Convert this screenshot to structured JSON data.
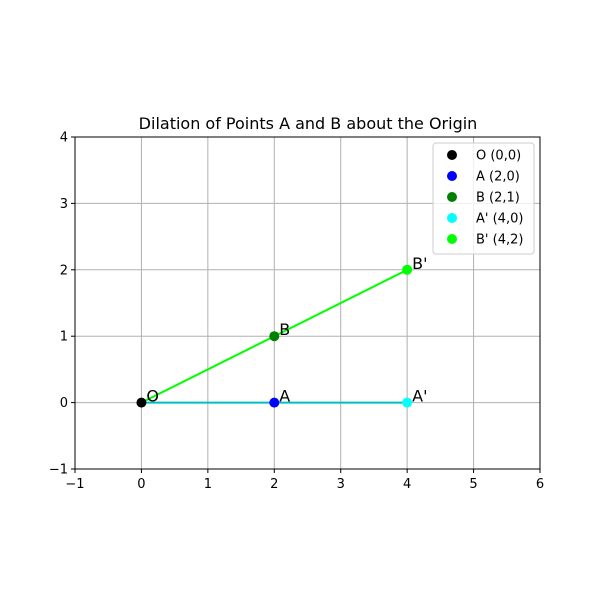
{
  "chart_data": {
    "type": "scatter",
    "title": "Dilation of Points A and B about the Origin",
    "xlabel": "",
    "ylabel": "",
    "xlim": [
      -1,
      6
    ],
    "ylim": [
      -1,
      4
    ],
    "xticks": [
      -1,
      0,
      1,
      2,
      3,
      4,
      5,
      6
    ],
    "yticks": [
      -1,
      0,
      1,
      2,
      3,
      4
    ],
    "xtick_labels": [
      "−1",
      "0",
      "1",
      "2",
      "3",
      "4",
      "5",
      "6"
    ],
    "ytick_labels": [
      "−1",
      "0",
      "1",
      "2",
      "3",
      "4"
    ],
    "grid": true,
    "legend_position": "top-right",
    "series": [
      {
        "name": "O (0,0)",
        "label": "O",
        "x": 0,
        "y": 0,
        "color": "#000000"
      },
      {
        "name": "A (2,0)",
        "label": "A",
        "x": 2,
        "y": 0,
        "color": "#0000ff"
      },
      {
        "name": "B (2,1)",
        "label": "B",
        "x": 2,
        "y": 1,
        "color": "#008000"
      },
      {
        "name": "A' (4,0)",
        "label": "A'",
        "x": 4,
        "y": 0,
        "color": "#00ffff"
      },
      {
        "name": "B' (4,2)",
        "label": "B'",
        "x": 4,
        "y": 2,
        "color": "#00ff00"
      }
    ],
    "segments": [
      {
        "from": [
          0,
          0
        ],
        "to": [
          4,
          0
        ],
        "color": "#00bfbf"
      },
      {
        "from": [
          0,
          0
        ],
        "to": [
          4,
          2
        ],
        "color": "#00ff00"
      }
    ]
  }
}
